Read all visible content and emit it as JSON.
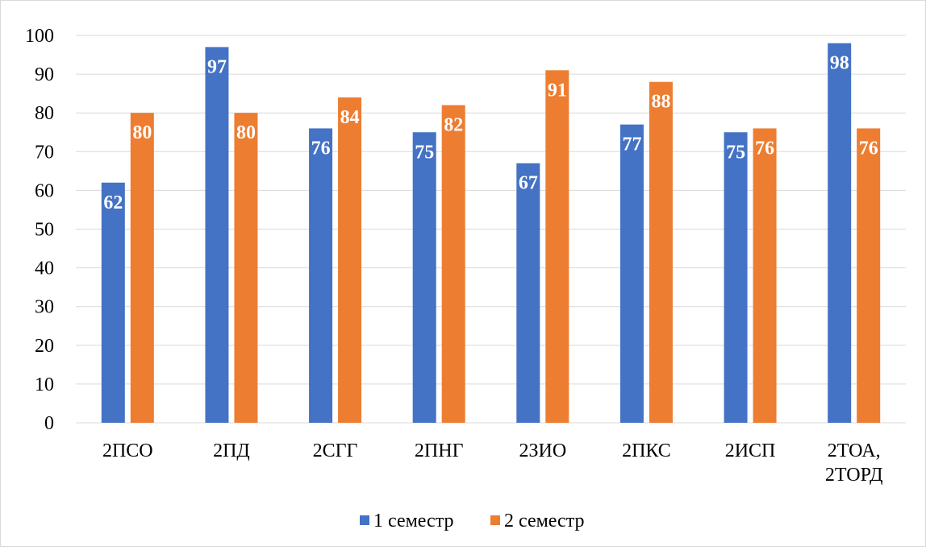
{
  "chart_data": {
    "type": "bar",
    "title": "",
    "xlabel": "",
    "ylabel": "",
    "ylim": [
      0,
      100
    ],
    "yticks": [
      0,
      10,
      20,
      30,
      40,
      50,
      60,
      70,
      80,
      90,
      100
    ],
    "grid": true,
    "legend_position": "bottom",
    "categories": [
      [
        "2ПСО"
      ],
      [
        "2ПД"
      ],
      [
        "2СГГ"
      ],
      [
        "2ПНГ"
      ],
      [
        "2ЗИО"
      ],
      [
        "2ПКС"
      ],
      [
        "2ИСП"
      ],
      [
        "2ТОА,",
        "2ТОРД"
      ]
    ],
    "series": [
      {
        "name": "1 семестр",
        "color": "#4472C4",
        "values": [
          62,
          97,
          76,
          75,
          67,
          77,
          75,
          98
        ]
      },
      {
        "name": "2 семестр",
        "color": "#ED7D31",
        "values": [
          80,
          80,
          84,
          82,
          91,
          88,
          76,
          76
        ]
      }
    ]
  }
}
